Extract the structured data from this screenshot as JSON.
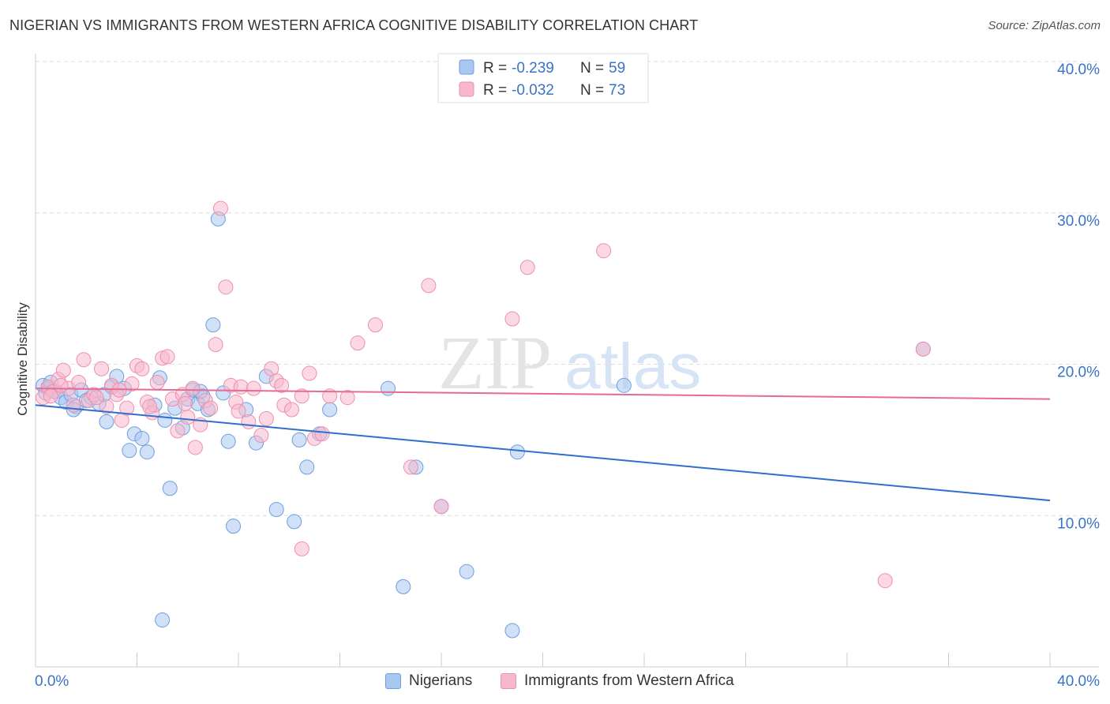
{
  "title": "NIGERIAN VS IMMIGRANTS FROM WESTERN AFRICA COGNITIVE DISABILITY CORRELATION CHART",
  "source": "Source: ZipAtlas.com",
  "watermark": {
    "zip": "ZIP",
    "atlas": "atlas"
  },
  "colors": {
    "blue_fill": "#a9c8f0",
    "blue_stroke": "#6d9ee0",
    "blue_line": "#2f6fcc",
    "pink_fill": "#f7b8cc",
    "pink_stroke": "#ee8fae",
    "pink_line": "#e56b96",
    "axis_text": "#3a73c4",
    "grid": "#dddddd"
  },
  "legend_box": [
    {
      "r_label": "R =",
      "r_value": "-0.239",
      "n_label": "N =",
      "n_value": "59"
    },
    {
      "r_label": "R =",
      "r_value": "-0.032",
      "n_label": "N =",
      "n_value": "73"
    }
  ],
  "chart_data": {
    "type": "scatter",
    "xlabel": "",
    "ylabel": "Cognitive Disability",
    "xlim": [
      0,
      40
    ],
    "ylim": [
      0,
      40
    ],
    "x_tick_labels": [
      "0.0%",
      "40.0%"
    ],
    "y_tick_labels": [
      "10.0%",
      "20.0%",
      "30.0%",
      "40.0%"
    ],
    "y_ticks": [
      10,
      20,
      30,
      40
    ],
    "grid": "horizontal dashed",
    "legend_position": "bottom",
    "series": [
      {
        "name": "Nigerians",
        "color": "#a9c8f0",
        "trend": {
          "x": [
            0,
            40
          ],
          "y": [
            17.3,
            11.0
          ]
        },
        "points": [
          [
            0.3,
            18.6
          ],
          [
            0.5,
            18.4
          ],
          [
            0.6,
            18.8
          ],
          [
            0.8,
            18.2
          ],
          [
            1.0,
            17.8
          ],
          [
            1.2,
            17.5
          ],
          [
            1.4,
            18.0
          ],
          [
            1.6,
            17.2
          ],
          [
            1.8,
            18.3
          ],
          [
            2.0,
            17.6
          ],
          [
            2.2,
            17.8
          ],
          [
            2.5,
            17.4
          ],
          [
            2.8,
            16.2
          ],
          [
            3.0,
            18.5
          ],
          [
            3.2,
            19.2
          ],
          [
            3.5,
            18.4
          ],
          [
            3.7,
            14.3
          ],
          [
            3.9,
            15.4
          ],
          [
            4.2,
            15.1
          ],
          [
            4.4,
            14.2
          ],
          [
            4.7,
            17.3
          ],
          [
            4.9,
            19.1
          ],
          [
            5.1,
            16.3
          ],
          [
            5.3,
            11.8
          ],
          [
            5.5,
            17.1
          ],
          [
            5.8,
            15.8
          ],
          [
            6.0,
            17.7
          ],
          [
            6.2,
            18.3
          ],
          [
            6.4,
            17.4
          ],
          [
            6.6,
            17.9
          ],
          [
            6.8,
            17.0
          ],
          [
            7.0,
            22.6
          ],
          [
            7.2,
            29.6
          ],
          [
            7.4,
            18.1
          ],
          [
            7.6,
            14.9
          ],
          [
            7.8,
            9.3
          ],
          [
            8.3,
            17.0
          ],
          [
            8.7,
            14.8
          ],
          [
            9.1,
            19.2
          ],
          [
            9.5,
            10.4
          ],
          [
            10.2,
            9.6
          ],
          [
            10.4,
            15.0
          ],
          [
            10.7,
            13.2
          ],
          [
            11.2,
            15.4
          ],
          [
            11.6,
            17.0
          ],
          [
            13.9,
            18.4
          ],
          [
            14.5,
            5.3
          ],
          [
            15.0,
            13.2
          ],
          [
            16.0,
            10.6
          ],
          [
            17.0,
            6.3
          ],
          [
            18.8,
            2.4
          ],
          [
            19.0,
            14.2
          ],
          [
            23.2,
            18.6
          ],
          [
            35.0,
            21.0
          ],
          [
            0.4,
            18.1
          ],
          [
            5.0,
            3.1
          ],
          [
            2.7,
            18.0
          ],
          [
            1.5,
            17.0
          ],
          [
            6.5,
            18.2
          ]
        ]
      },
      {
        "name": "Immigrants from Western Africa",
        "color": "#f7b8cc",
        "trend": {
          "x": [
            0,
            40
          ],
          "y": [
            18.4,
            17.7
          ]
        },
        "points": [
          [
            0.3,
            17.8
          ],
          [
            0.5,
            18.5
          ],
          [
            0.7,
            18.2
          ],
          [
            0.9,
            19.0
          ],
          [
            1.1,
            19.6
          ],
          [
            1.3,
            18.4
          ],
          [
            1.5,
            17.3
          ],
          [
            1.7,
            18.8
          ],
          [
            1.9,
            20.3
          ],
          [
            2.1,
            17.6
          ],
          [
            2.3,
            18.0
          ],
          [
            2.6,
            19.7
          ],
          [
            2.8,
            17.2
          ],
          [
            3.0,
            18.6
          ],
          [
            3.2,
            18.0
          ],
          [
            3.4,
            16.3
          ],
          [
            3.6,
            17.1
          ],
          [
            3.8,
            18.7
          ],
          [
            4.0,
            19.9
          ],
          [
            4.2,
            19.7
          ],
          [
            4.4,
            17.5
          ],
          [
            4.6,
            16.8
          ],
          [
            4.8,
            18.8
          ],
          [
            5.0,
            20.4
          ],
          [
            5.2,
            20.5
          ],
          [
            5.4,
            17.7
          ],
          [
            5.6,
            15.6
          ],
          [
            5.8,
            18.0
          ],
          [
            6.0,
            16.5
          ],
          [
            6.3,
            14.5
          ],
          [
            6.5,
            16.0
          ],
          [
            6.7,
            17.6
          ],
          [
            6.9,
            17.1
          ],
          [
            7.1,
            21.3
          ],
          [
            7.3,
            30.3
          ],
          [
            7.5,
            25.1
          ],
          [
            7.7,
            18.6
          ],
          [
            7.9,
            17.5
          ],
          [
            8.1,
            18.5
          ],
          [
            8.4,
            16.2
          ],
          [
            8.6,
            18.4
          ],
          [
            8.9,
            15.3
          ],
          [
            9.1,
            16.4
          ],
          [
            9.3,
            19.7
          ],
          [
            9.5,
            18.9
          ],
          [
            9.8,
            17.3
          ],
          [
            10.1,
            17.0
          ],
          [
            10.5,
            17.9
          ],
          [
            10.8,
            19.4
          ],
          [
            11.0,
            15.1
          ],
          [
            11.3,
            15.4
          ],
          [
            11.6,
            17.9
          ],
          [
            12.3,
            17.8
          ],
          [
            12.7,
            21.4
          ],
          [
            13.4,
            22.6
          ],
          [
            14.8,
            13.2
          ],
          [
            15.5,
            25.2
          ],
          [
            16.0,
            10.6
          ],
          [
            18.8,
            23.0
          ],
          [
            19.4,
            26.4
          ],
          [
            22.4,
            27.5
          ],
          [
            33.5,
            5.7
          ],
          [
            35.0,
            21.0
          ],
          [
            10.5,
            7.8
          ],
          [
            2.4,
            17.8
          ],
          [
            4.5,
            17.2
          ],
          [
            6.2,
            18.4
          ],
          [
            8.0,
            16.9
          ],
          [
            9.7,
            18.6
          ],
          [
            3.3,
            18.3
          ],
          [
            1.0,
            18.6
          ],
          [
            0.6,
            17.9
          ],
          [
            5.9,
            17.4
          ]
        ]
      }
    ]
  },
  "bottom_legend": [
    "Nigerians",
    "Immigrants from Western Africa"
  ]
}
